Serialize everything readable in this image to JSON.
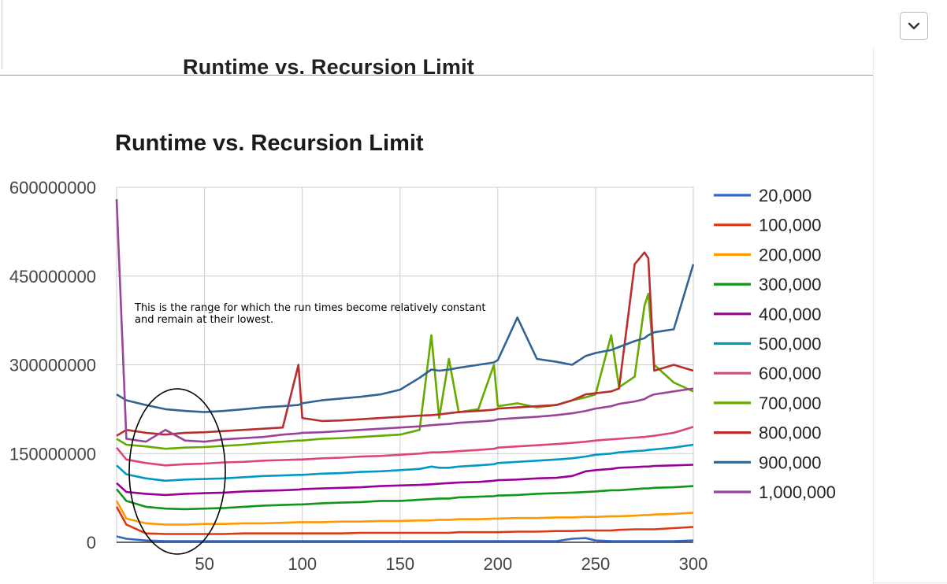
{
  "collapsed_header": {
    "title": "Runtime vs. Recursion Limit"
  },
  "expand_button": {
    "icon": "chevron-down-icon"
  },
  "annotation": {
    "text": "This is the range for which the run times become relatively constant and remain at their lowest."
  },
  "chart_data": {
    "type": "line",
    "title": "Runtime vs. Recursion Limit",
    "xlabel": "",
    "ylabel": "",
    "xlim": [
      5,
      300
    ],
    "ylim": [
      0,
      600000000
    ],
    "x_ticks": [
      50,
      100,
      150,
      200,
      250,
      300
    ],
    "y_ticks": [
      0,
      150000000,
      300000000,
      450000000,
      600000000
    ],
    "y_tick_labels": [
      "0",
      "150000000",
      "300000000",
      "450000000",
      "600000000"
    ],
    "grid": true,
    "legend_position": "right",
    "x": [
      5,
      10,
      20,
      30,
      40,
      50,
      60,
      70,
      80,
      90,
      98,
      100,
      110,
      120,
      130,
      140,
      150,
      160,
      166,
      170,
      175,
      180,
      190,
      198,
      200,
      210,
      220,
      230,
      238,
      245,
      250,
      258,
      262,
      270,
      275,
      277,
      280,
      290,
      300
    ],
    "series": [
      {
        "name": "20,000",
        "color": "#3366cc",
        "values": [
          10000000,
          6000000,
          3000000,
          2000000,
          2000000,
          2000000,
          2000000,
          2000000,
          2000000,
          2000000,
          2000000,
          2000000,
          2000000,
          2000000,
          2000000,
          2000000,
          2000000,
          2000000,
          2000000,
          2000000,
          2000000,
          2000000,
          2000000,
          2000000,
          2000000,
          2000000,
          2000000,
          2000000,
          6000000,
          7000000,
          3000000,
          2000000,
          2000000,
          2000000,
          2000000,
          2000000,
          2000000,
          2000000,
          3000000
        ]
      },
      {
        "name": "100,000",
        "color": "#dc3912",
        "values": [
          60000000,
          30000000,
          15000000,
          14000000,
          14000000,
          14000000,
          14000000,
          15000000,
          15000000,
          15000000,
          15000000,
          15000000,
          15000000,
          15000000,
          16000000,
          16000000,
          16000000,
          16000000,
          16000000,
          16000000,
          16000000,
          17000000,
          17000000,
          17000000,
          17000000,
          18000000,
          18000000,
          19000000,
          19000000,
          20000000,
          20000000,
          20000000,
          21000000,
          22000000,
          22000000,
          22000000,
          22000000,
          24000000,
          26000000
        ]
      },
      {
        "name": "200,000",
        "color": "#ff9900",
        "values": [
          70000000,
          40000000,
          32000000,
          30000000,
          30000000,
          31000000,
          31000000,
          32000000,
          32000000,
          33000000,
          34000000,
          34000000,
          34000000,
          35000000,
          35000000,
          36000000,
          36000000,
          37000000,
          37000000,
          38000000,
          38000000,
          39000000,
          39000000,
          40000000,
          40000000,
          41000000,
          41000000,
          42000000,
          42000000,
          43000000,
          43000000,
          44000000,
          44000000,
          45000000,
          46000000,
          46000000,
          47000000,
          48000000,
          50000000
        ]
      },
      {
        "name": "300,000",
        "color": "#109618",
        "values": [
          90000000,
          70000000,
          60000000,
          57000000,
          56000000,
          57000000,
          58000000,
          60000000,
          62000000,
          63000000,
          64000000,
          64000000,
          66000000,
          67000000,
          68000000,
          70000000,
          70000000,
          72000000,
          73000000,
          74000000,
          74000000,
          76000000,
          77000000,
          78000000,
          79000000,
          80000000,
          82000000,
          83000000,
          84000000,
          85000000,
          86000000,
          88000000,
          88000000,
          90000000,
          91000000,
          91000000,
          92000000,
          93000000,
          95000000
        ]
      },
      {
        "name": "400,000",
        "color": "#990099",
        "values": [
          100000000,
          85000000,
          82000000,
          80000000,
          82000000,
          83000000,
          84000000,
          86000000,
          87000000,
          88000000,
          89000000,
          90000000,
          91000000,
          92000000,
          93000000,
          95000000,
          96000000,
          97000000,
          98000000,
          99000000,
          100000000,
          101000000,
          102000000,
          104000000,
          105000000,
          106000000,
          108000000,
          109000000,
          112000000,
          120000000,
          122000000,
          124000000,
          126000000,
          127000000,
          128000000,
          128000000,
          129000000,
          130000000,
          131000000
        ]
      },
      {
        "name": "500,000",
        "color": "#0099c6",
        "values": [
          130000000,
          115000000,
          108000000,
          104000000,
          106000000,
          107000000,
          108000000,
          110000000,
          112000000,
          113000000,
          114000000,
          114000000,
          116000000,
          117000000,
          119000000,
          120000000,
          122000000,
          124000000,
          128000000,
          126000000,
          126000000,
          128000000,
          130000000,
          132000000,
          134000000,
          136000000,
          138000000,
          140000000,
          142000000,
          145000000,
          148000000,
          150000000,
          152000000,
          154000000,
          155000000,
          156000000,
          157000000,
          160000000,
          165000000
        ]
      },
      {
        "name": "600,000",
        "color": "#dd4477",
        "values": [
          160000000,
          140000000,
          134000000,
          130000000,
          132000000,
          133000000,
          135000000,
          136000000,
          138000000,
          139000000,
          140000000,
          140000000,
          142000000,
          143000000,
          145000000,
          146000000,
          148000000,
          150000000,
          152000000,
          152000000,
          153000000,
          154000000,
          156000000,
          158000000,
          160000000,
          162000000,
          164000000,
          166000000,
          168000000,
          170000000,
          172000000,
          174000000,
          175000000,
          177000000,
          178000000,
          179000000,
          180000000,
          185000000,
          195000000
        ]
      },
      {
        "name": "700,000",
        "color": "#66aa00",
        "values": [
          175000000,
          165000000,
          162000000,
          158000000,
          160000000,
          161000000,
          163000000,
          165000000,
          168000000,
          170000000,
          172000000,
          172000000,
          175000000,
          176000000,
          178000000,
          180000000,
          182000000,
          190000000,
          350000000,
          210000000,
          310000000,
          220000000,
          225000000,
          300000000,
          230000000,
          235000000,
          228000000,
          232000000,
          240000000,
          245000000,
          250000000,
          350000000,
          262000000,
          280000000,
          400000000,
          420000000,
          300000000,
          270000000,
          255000000
        ]
      },
      {
        "name": "800,000",
        "color": "#b82e2e",
        "values": [
          180000000,
          190000000,
          185000000,
          182000000,
          185000000,
          186000000,
          188000000,
          190000000,
          192000000,
          194000000,
          300000000,
          210000000,
          205000000,
          206000000,
          208000000,
          210000000,
          212000000,
          214000000,
          215000000,
          216000000,
          218000000,
          220000000,
          222000000,
          224000000,
          226000000,
          228000000,
          230000000,
          232000000,
          240000000,
          250000000,
          252000000,
          255000000,
          260000000,
          470000000,
          490000000,
          480000000,
          290000000,
          300000000,
          290000000
        ]
      },
      {
        "name": "900,000",
        "color": "#316395",
        "values": [
          250000000,
          240000000,
          232000000,
          225000000,
          222000000,
          220000000,
          222000000,
          225000000,
          228000000,
          230000000,
          232000000,
          235000000,
          240000000,
          243000000,
          246000000,
          250000000,
          258000000,
          278000000,
          292000000,
          290000000,
          292000000,
          295000000,
          300000000,
          304000000,
          308000000,
          380000000,
          310000000,
          305000000,
          300000000,
          315000000,
          320000000,
          325000000,
          330000000,
          340000000,
          345000000,
          350000000,
          355000000,
          360000000,
          470000000
        ]
      },
      {
        "name": "1,000,000",
        "color": "#994499",
        "values": [
          580000000,
          175000000,
          170000000,
          190000000,
          172000000,
          170000000,
          174000000,
          176000000,
          178000000,
          182000000,
          184000000,
          185000000,
          186000000,
          188000000,
          190000000,
          192000000,
          194000000,
          196000000,
          198000000,
          199000000,
          200000000,
          202000000,
          204000000,
          206000000,
          208000000,
          210000000,
          212000000,
          215000000,
          218000000,
          222000000,
          226000000,
          230000000,
          234000000,
          238000000,
          242000000,
          246000000,
          250000000,
          255000000,
          260000000
        ]
      }
    ]
  }
}
